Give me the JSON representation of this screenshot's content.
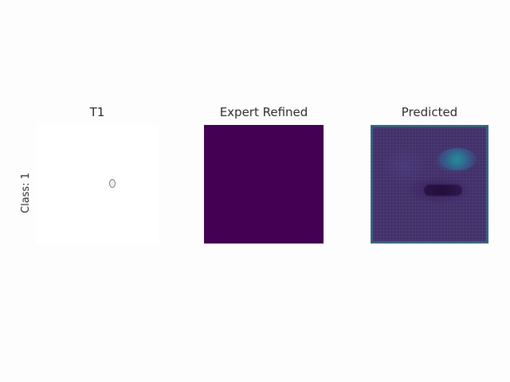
{
  "panels": {
    "t1": {
      "title": "T1"
    },
    "expert": {
      "title": "Expert Refined"
    },
    "predicted": {
      "title": "Predicted"
    }
  },
  "row_label": "Class: 1",
  "colors": {
    "page_background": "#fdfdfd",
    "t1_background": "#ffffff",
    "expert_fill": "#440154",
    "predicted_base": "#42306a",
    "predicted_border": "#35607a",
    "predicted_highlight": "#258c96"
  }
}
